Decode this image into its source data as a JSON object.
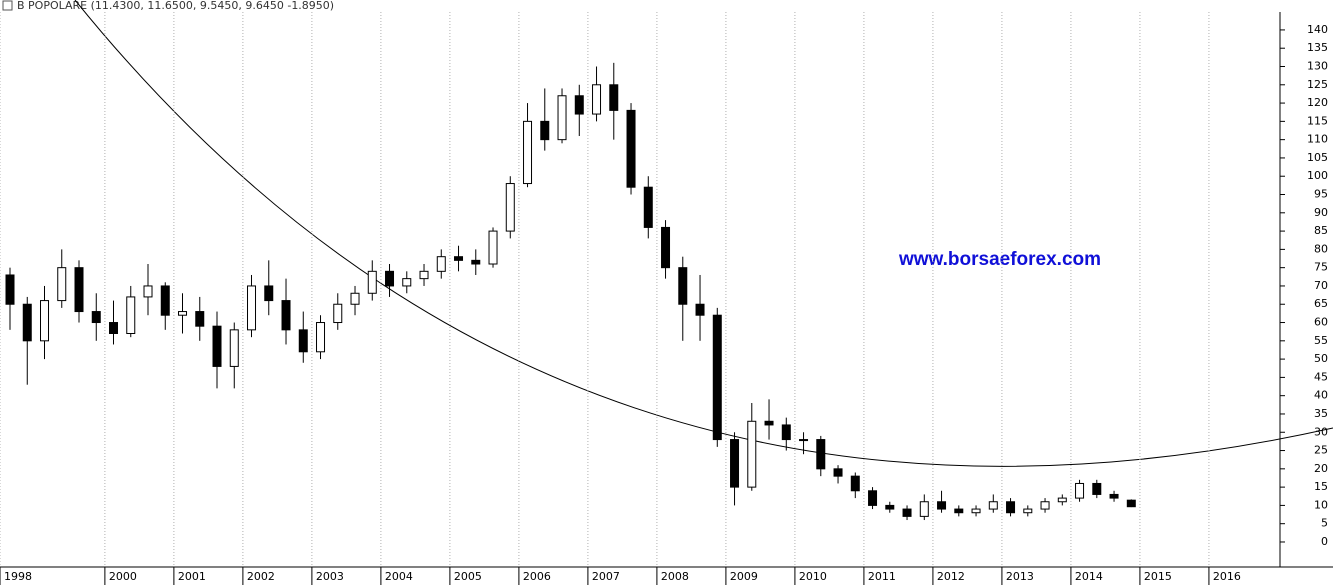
{
  "chart_data": {
    "type": "candlestick",
    "title": "B POPOLARE (11.4300, 11.6500, 9.5450, 9.6450 -1.8950)",
    "annotation": "www.borsaeforex.com",
    "x": [
      1998.625,
      1998.875,
      1999.125,
      1999.375,
      1999.625,
      1999.875,
      2000.125,
      2000.375,
      2000.625,
      2000.875,
      2001.125,
      2001.375,
      2001.625,
      2001.875,
      2002.125,
      2002.375,
      2002.625,
      2002.875,
      2003.125,
      2003.375,
      2003.625,
      2003.875,
      2004.125,
      2004.375,
      2004.625,
      2004.875,
      2005.125,
      2005.375,
      2005.625,
      2005.875,
      2006.125,
      2006.375,
      2006.625,
      2006.875,
      2007.125,
      2007.375,
      2007.625,
      2007.875,
      2008.125,
      2008.375,
      2008.625,
      2008.875,
      2009.125,
      2009.375,
      2009.625,
      2009.875,
      2010.125,
      2010.375,
      2010.625,
      2010.875,
      2011.125,
      2011.375,
      2011.625,
      2011.875,
      2012.125,
      2012.375,
      2012.625,
      2012.875,
      2013.125,
      2013.375,
      2013.625,
      2013.875,
      2014.125,
      2014.375,
      2014.625,
      2014.875
    ],
    "open": [
      73,
      65,
      55,
      66,
      75,
      63,
      60,
      57,
      67,
      70,
      62,
      63,
      59,
      48,
      58,
      70,
      66,
      58,
      52,
      60,
      65,
      68,
      74,
      70,
      72,
      74,
      78,
      77,
      76,
      85,
      98,
      115,
      110,
      122,
      117,
      125,
      118,
      97,
      86,
      75,
      65,
      62,
      28,
      15,
      33,
      32,
      28,
      28,
      20,
      18,
      14,
      10,
      9,
      7,
      11,
      9,
      8,
      9,
      11,
      8,
      9,
      11,
      12,
      16,
      13,
      11.43
    ],
    "high": [
      75,
      67,
      70,
      80,
      77,
      68,
      66,
      70,
      76,
      71,
      68,
      67,
      63,
      60,
      73,
      77,
      72,
      63,
      62,
      68,
      70,
      77,
      76,
      74,
      76,
      80,
      81,
      80,
      86,
      100,
      120,
      124,
      124,
      125,
      130,
      131,
      120,
      100,
      88,
      78,
      73,
      64,
      30,
      38,
      39,
      34,
      30,
      29,
      21,
      19,
      15,
      11,
      10,
      13,
      14,
      10,
      10,
      13,
      12,
      10,
      12,
      13,
      17,
      17,
      14,
      11.65
    ],
    "low": [
      58,
      43,
      50,
      64,
      60,
      55,
      54,
      56,
      62,
      58,
      57,
      55,
      42,
      42,
      56,
      62,
      54,
      49,
      50,
      58,
      62,
      66,
      67,
      68,
      70,
      72,
      74,
      73,
      75,
      83,
      97,
      107,
      109,
      111,
      115,
      110,
      95,
      83,
      72,
      55,
      55,
      26,
      10,
      14,
      28,
      25,
      24,
      18,
      16,
      12,
      9,
      8,
      6,
      6,
      8,
      7,
      7,
      8,
      7,
      7,
      8,
      10,
      11,
      12,
      11,
      9.545
    ],
    "close": [
      65,
      55,
      66,
      75,
      63,
      60,
      57,
      67,
      70,
      62,
      63,
      59,
      48,
      58,
      70,
      66,
      58,
      52,
      60,
      65,
      68,
      74,
      70,
      72,
      74,
      78,
      77,
      76,
      85,
      98,
      115,
      110,
      122,
      117,
      125,
      118,
      97,
      86,
      75,
      65,
      62,
      28,
      15,
      33,
      32,
      28,
      28,
      20,
      18,
      14,
      10,
      9,
      7,
      11,
      9,
      8,
      9,
      11,
      8,
      9,
      11,
      12,
      16,
      13,
      12,
      9.645
    ],
    "xlim": [
      1998.48,
      2017.03
    ],
    "xticks": [
      {
        "value": 1998.48,
        "label": "1998"
      },
      2000,
      2001,
      2002,
      2003,
      2004,
      2005,
      2006,
      2007,
      2008,
      2009,
      2010,
      2011,
      2012,
      2013,
      2014,
      2015,
      2016
    ],
    "ylim": [
      -6.84,
      144.9
    ],
    "yticks": [
      0,
      5,
      10,
      15,
      20,
      25,
      30,
      35,
      40,
      45,
      50,
      55,
      60,
      65,
      70,
      75,
      80,
      85,
      90,
      95,
      100,
      105,
      110,
      115,
      120,
      125,
      130,
      135,
      140
    ],
    "up_color": "#ffffff",
    "down_color": "#000000",
    "grid": true
  }
}
